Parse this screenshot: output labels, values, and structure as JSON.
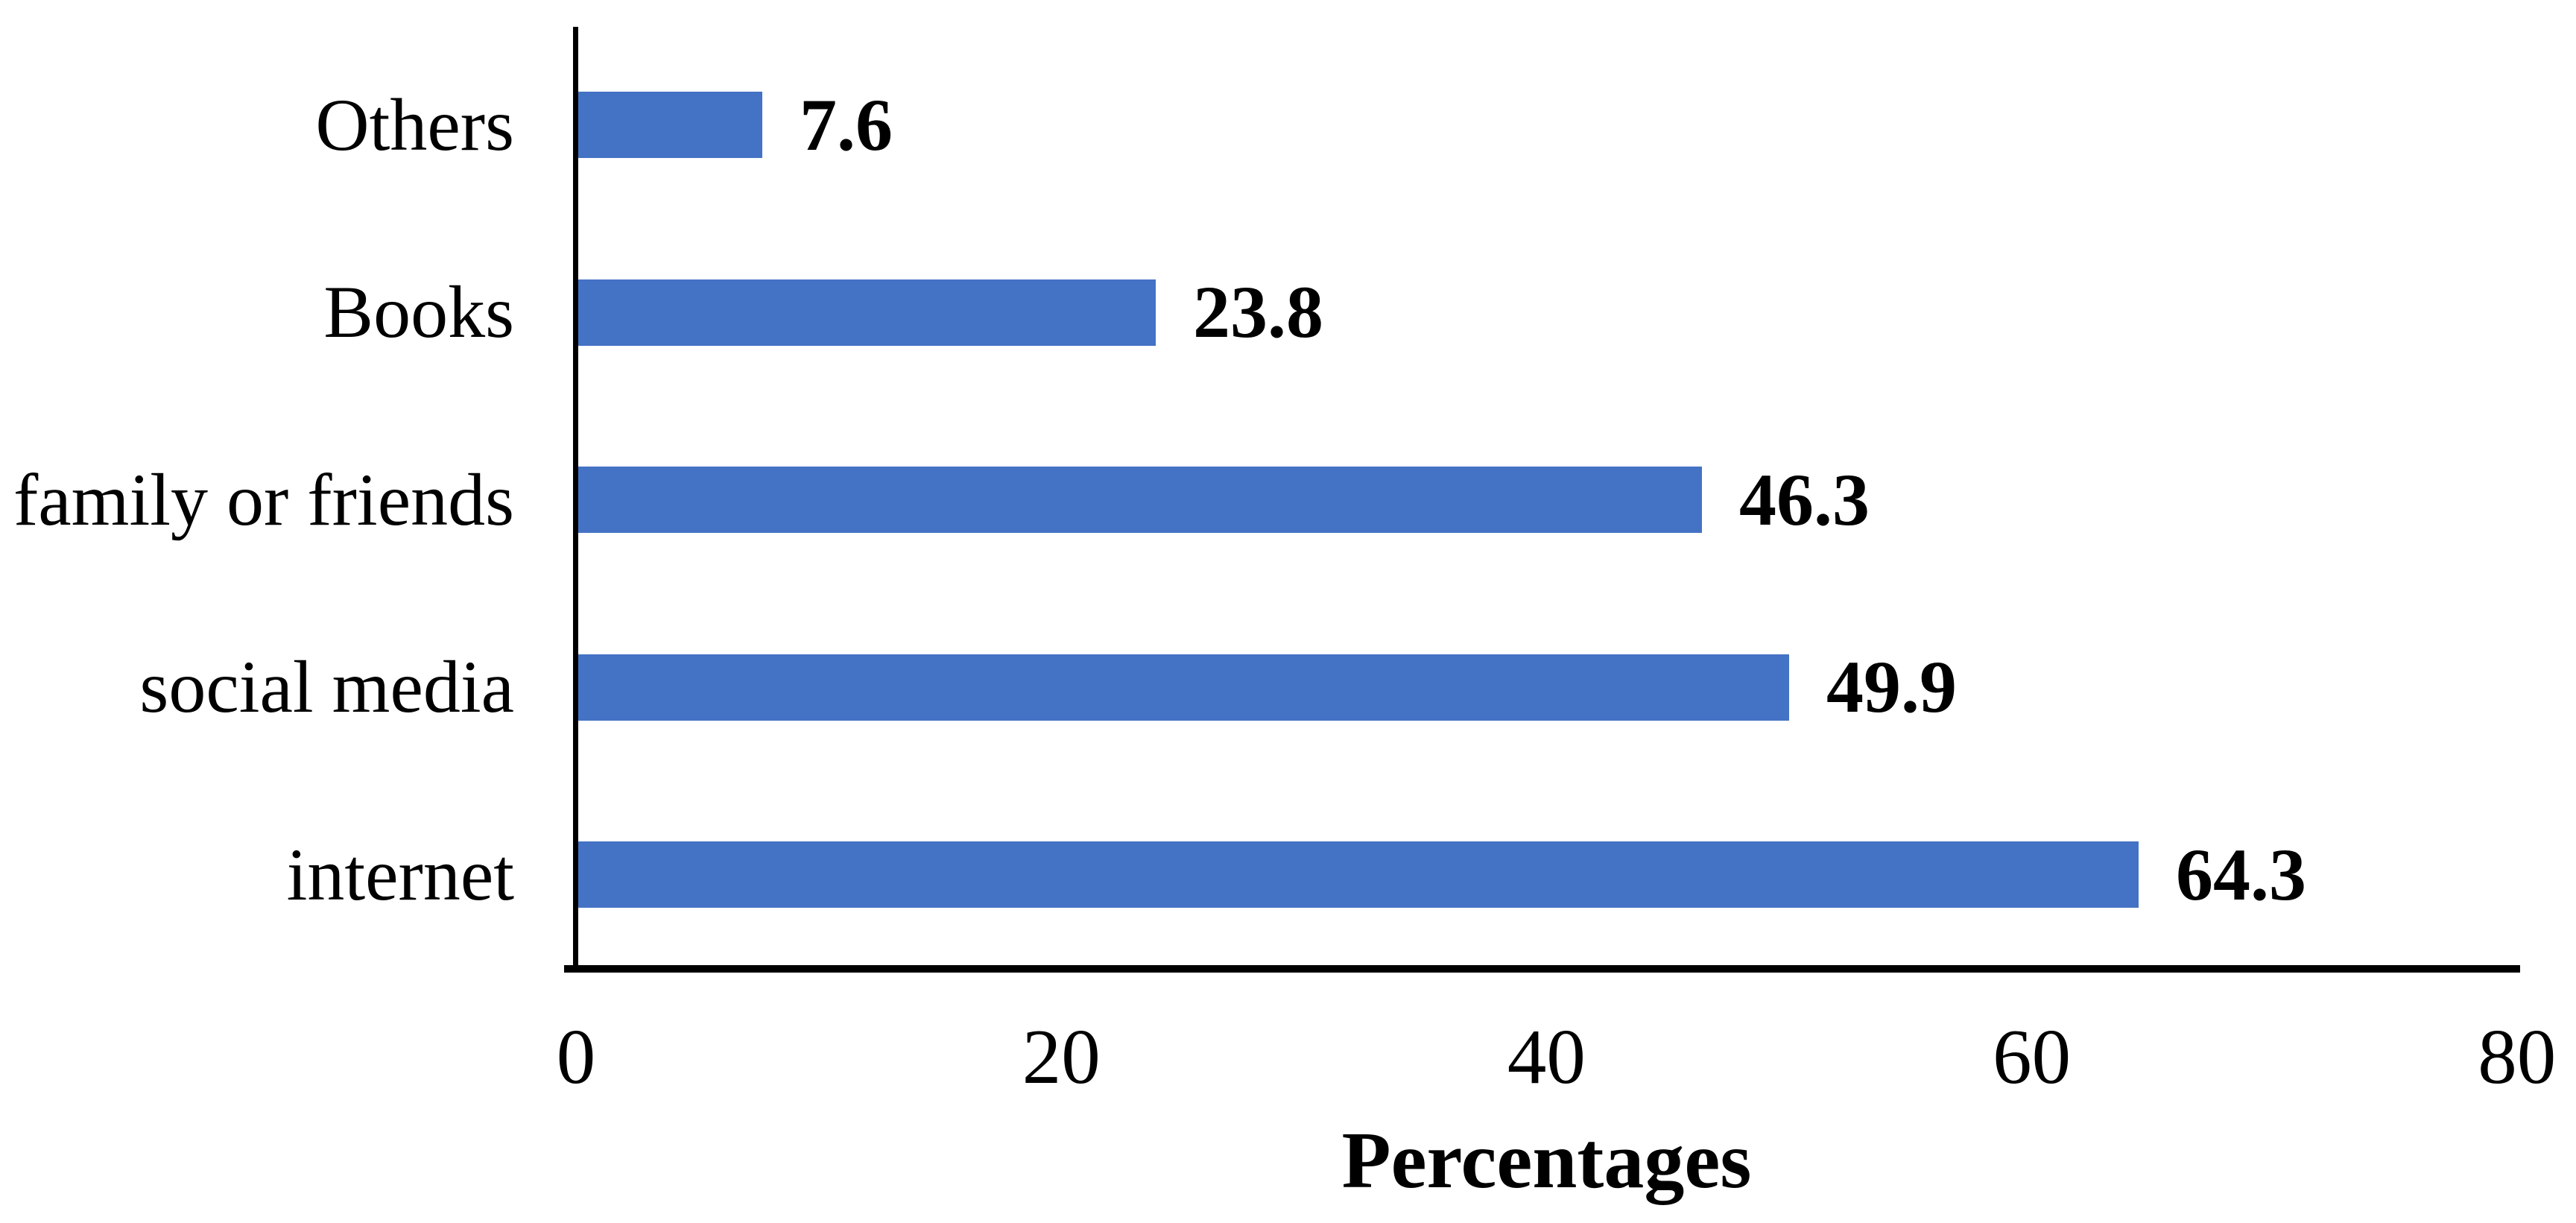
{
  "chart_data": {
    "type": "bar",
    "orientation": "horizontal",
    "categories": [
      "Others",
      "Books",
      "family or friends",
      "social media",
      "internet"
    ],
    "values": [
      7.6,
      23.8,
      46.3,
      49.9,
      64.3
    ],
    "value_labels": [
      "7.6",
      "23.8",
      "46.3",
      "49.9",
      "64.3"
    ],
    "x_ticks": [
      0,
      20,
      40,
      60,
      80
    ],
    "xlim": [
      0,
      80
    ],
    "xlabel": "Percentages",
    "title": "",
    "grid": false,
    "legend": false,
    "bar_color": "#4472C4",
    "axis_color": "#000000",
    "background_color": "#FFFFFF"
  }
}
